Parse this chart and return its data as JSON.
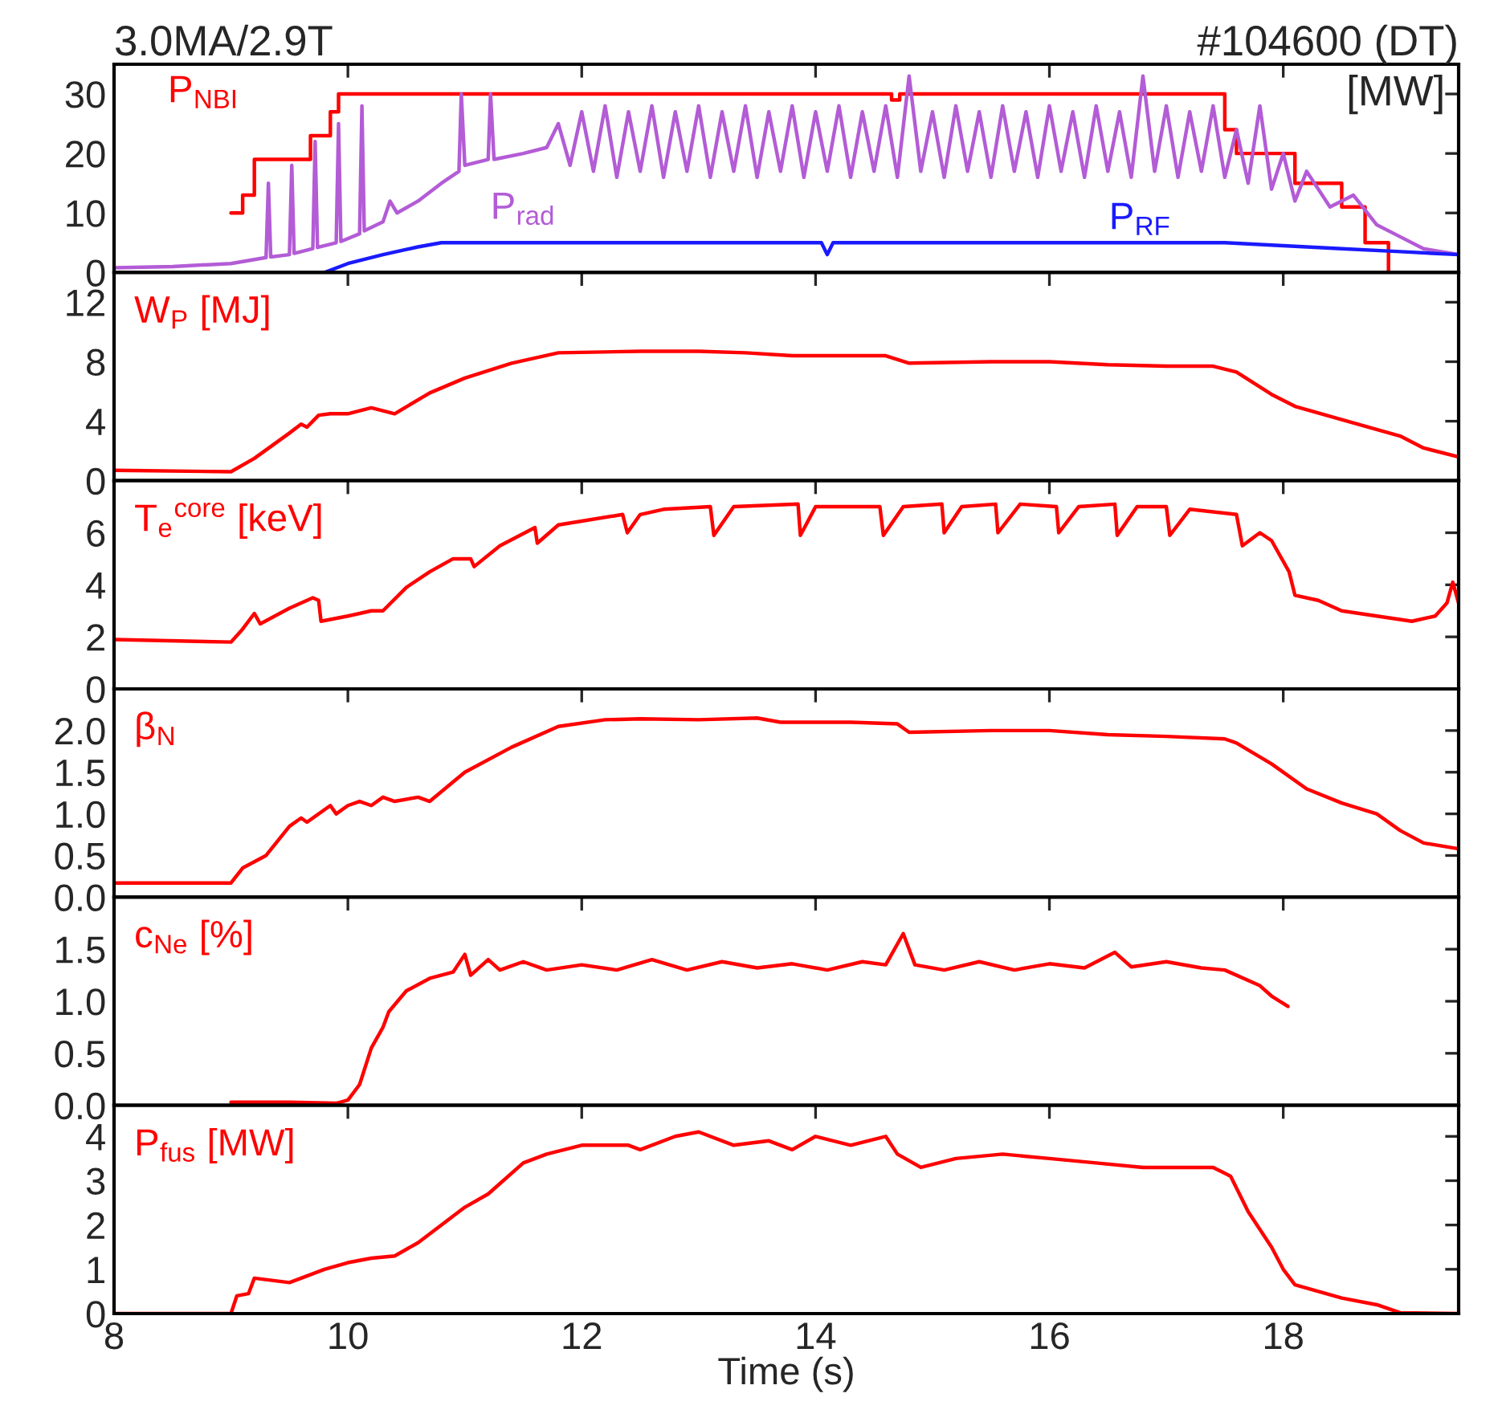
{
  "chart_data": [
    {
      "type": "line",
      "title": "3.0MA/2.9T",
      "subtitle": "#104600 (DT)",
      "ylabel": "[MW]",
      "xlim": [
        8,
        19.5
      ],
      "xticks": [
        8,
        10,
        12,
        14,
        16,
        18
      ],
      "ylim": [
        0,
        35
      ],
      "yticks": [
        0,
        10,
        20,
        30
      ],
      "tick_labels": "y",
      "grid": false,
      "legend": false,
      "series": [
        {
          "name": "P$_{NBI}$",
          "color": "#ff0000",
          "x": [
            9.0,
            9.1,
            9.1,
            9.2,
            9.2,
            9.68,
            9.68,
            9.85,
            9.85,
            9.92,
            9.92,
            14.65,
            14.65,
            14.72,
            14.72,
            17.5,
            17.5,
            17.6,
            17.6,
            18.1,
            18.1,
            18.5,
            18.5,
            18.7,
            18.7,
            18.9,
            18.9
          ],
          "values": [
            10,
            10,
            13,
            13,
            19,
            19,
            23,
            23,
            27,
            27,
            30,
            30,
            29,
            29,
            30,
            30,
            24,
            24,
            20,
            20,
            15,
            15,
            11,
            11,
            5,
            5,
            0
          ]
        },
        {
          "name": "P$_{rad}$",
          "color": "#b35cd6",
          "x": [
            8,
            8.5,
            9.0,
            9.3,
            9.32,
            9.34,
            9.5,
            9.52,
            9.54,
            9.7,
            9.72,
            9.74,
            9.9,
            9.92,
            9.94,
            10.1,
            10.12,
            10.14,
            10.3,
            10.32,
            10.36,
            10.38,
            10.42,
            10.6,
            10.8,
            10.95,
            10.97,
            11.0,
            11.2,
            11.22,
            11.25,
            11.5,
            11.7,
            11.8,
            11.9,
            12.0,
            12.1,
            12.2,
            12.3,
            12.4,
            12.5,
            12.6,
            12.7,
            12.8,
            12.9,
            13.0,
            13.1,
            13.2,
            13.25,
            13.3,
            13.4,
            13.5,
            13.6,
            13.7,
            13.8,
            13.9,
            14.0,
            14.1,
            14.2,
            14.3,
            14.4,
            14.5,
            14.6,
            14.7,
            14.8,
            14.9,
            15.0,
            15.1,
            15.2,
            15.3,
            15.4,
            15.5,
            15.6,
            15.7,
            15.8,
            15.9,
            16.0,
            16.1,
            16.2,
            16.3,
            16.4,
            16.5,
            16.6,
            16.7,
            16.8,
            16.9,
            17.0,
            17.1,
            17.2,
            17.3,
            17.4,
            17.5,
            17.6,
            17.65,
            17.7,
            17.8,
            17.9,
            18.0,
            18.1,
            18.2,
            18.4,
            18.6,
            18.8,
            19.0,
            19.2,
            19.5
          ],
          "values": [
            0.8,
            1.0,
            1.5,
            2.5,
            15,
            2.6,
            3,
            18,
            3.2,
            4,
            22,
            4.2,
            5,
            25,
            5.2,
            6.5,
            28,
            7,
            8.5,
            null,
            12,
            null,
            10,
            12,
            15,
            17,
            30,
            18,
            19,
            30,
            19,
            20,
            21,
            25,
            18,
            27,
            17,
            28,
            16,
            27,
            17,
            28,
            16,
            27,
            17,
            28,
            16,
            27,
            null,
            17,
            28,
            16,
            27,
            17,
            28,
            16,
            27,
            17,
            28,
            16,
            27,
            17,
            28,
            16,
            33,
            17,
            27,
            16,
            28,
            17,
            27,
            16,
            28,
            17,
            27,
            16,
            28,
            17,
            27,
            16,
            28,
            17,
            27,
            16,
            33,
            17,
            28,
            16,
            27,
            17,
            28,
            16,
            24,
            null,
            15,
            28,
            14,
            20,
            12,
            17,
            11,
            13,
            8,
            6,
            4,
            3
          ]
        },
        {
          "name": "P$_{RF}$",
          "color": "#1a1aff",
          "x": [
            9.8,
            10.0,
            10.3,
            10.6,
            10.8,
            11.5,
            12.5,
            13.5,
            14.05,
            14.1,
            14.15,
            15,
            16,
            17,
            17.5,
            18.0,
            18.5,
            19.0,
            19.5
          ],
          "values": [
            0,
            1.5,
            3,
            4.3,
            5,
            5,
            5,
            5,
            5,
            3,
            5,
            5,
            5,
            5,
            5,
            4.5,
            4,
            3.5,
            3
          ]
        }
      ]
    },
    {
      "type": "line",
      "xlim": [
        8,
        19.5
      ],
      "xticks": [
        8,
        10,
        12,
        14,
        16,
        18
      ],
      "ylim": [
        0,
        14
      ],
      "yticks": [
        0,
        4,
        8,
        12
      ],
      "tick_labels": "y",
      "grid": false,
      "legend": false,
      "series": [
        {
          "name": "W$_{P}$ [MJ]",
          "color": "#ff0000",
          "x": [
            8,
            9.0,
            9.2,
            9.5,
            9.6,
            9.65,
            9.75,
            9.85,
            10,
            10.2,
            10.4,
            10.7,
            11,
            11.4,
            11.8,
            12.5,
            13,
            13.4,
            13.8,
            14.2,
            14.6,
            14.8,
            15.5,
            16,
            16.5,
            17,
            17.4,
            17.6,
            17.9,
            18.1,
            18.5,
            19.0,
            19.2,
            19.5
          ],
          "values": [
            0.7,
            0.6,
            1.5,
            3.2,
            3.8,
            3.6,
            4.4,
            4.5,
            4.5,
            4.9,
            4.5,
            5.9,
            6.9,
            7.9,
            8.6,
            8.7,
            8.7,
            8.6,
            8.4,
            8.4,
            8.4,
            7.9,
            8.0,
            8.0,
            7.8,
            7.7,
            7.7,
            7.3,
            5.8,
            5.0,
            4.1,
            3.0,
            2.2,
            1.6
          ]
        }
      ]
    },
    {
      "type": "line",
      "xlim": [
        8,
        19.5
      ],
      "xticks": [
        8,
        10,
        12,
        14,
        16,
        18
      ],
      "ylim": [
        0,
        8
      ],
      "yticks": [
        0,
        2,
        4,
        6
      ],
      "tick_labels": "y",
      "grid": false,
      "legend": false,
      "series": [
        {
          "name": "T$_{e}$$^{core}$ [keV]",
          "color": "#ff0000",
          "x": [
            8,
            9.0,
            9.1,
            9.2,
            9.25,
            9.5,
            9.7,
            9.75,
            9.77,
            10.0,
            10.2,
            10.3,
            10.5,
            10.7,
            10.9,
            11.05,
            11.08,
            11.3,
            11.6,
            11.62,
            11.8,
            12.35,
            12.39,
            12.5,
            12.7,
            13.1,
            13.13,
            13.3,
            13.85,
            13.87,
            14.0,
            14.55,
            14.58,
            14.75,
            15.08,
            15.1,
            15.25,
            15.54,
            15.56,
            15.75,
            16.06,
            16.08,
            16.25,
            16.56,
            16.58,
            16.75,
            17.0,
            17.03,
            17.2,
            17.6,
            17.65,
            17.8,
            17.9,
            18.05,
            18.1,
            18.3,
            18.5,
            18.8,
            19.1,
            19.3,
            19.4,
            19.45,
            19.5
          ],
          "values": [
            1.9,
            1.8,
            2.3,
            2.9,
            2.5,
            3.1,
            3.5,
            3.4,
            2.6,
            2.8,
            3.0,
            3.0,
            3.9,
            4.5,
            5.0,
            5.0,
            4.7,
            5.5,
            6.2,
            5.6,
            6.3,
            6.7,
            6.0,
            6.7,
            6.9,
            7.0,
            5.9,
            7.0,
            7.1,
            5.9,
            7.0,
            7.0,
            5.9,
            7.0,
            7.1,
            6.0,
            7.0,
            7.1,
            6.0,
            7.1,
            7.0,
            6.0,
            7.0,
            7.1,
            5.9,
            7.0,
            7.0,
            5.9,
            6.9,
            6.7,
            5.5,
            6.0,
            5.7,
            4.5,
            3.6,
            3.4,
            3.0,
            2.8,
            2.6,
            2.8,
            3.3,
            4.1,
            3.3
          ]
        }
      ]
    },
    {
      "type": "line",
      "xlim": [
        8,
        19.5
      ],
      "xticks": [
        8,
        10,
        12,
        14,
        16,
        18
      ],
      "ylim": [
        0,
        2.5
      ],
      "yticks": [
        {
          "value": 0,
          "label": "0.0"
        },
        0.5,
        {
          "value": 1,
          "label": "1.0"
        },
        1.5,
        {
          "value": 2,
          "label": "2.0"
        }
      ],
      "tick_labels": "y",
      "grid": false,
      "legend": false,
      "series": [
        {
          "name": "β$_{N}$",
          "color": "#ff0000",
          "x": [
            8,
            9.0,
            9.1,
            9.3,
            9.5,
            9.6,
            9.65,
            9.85,
            9.9,
            10.0,
            10.1,
            10.2,
            10.3,
            10.4,
            10.6,
            10.7,
            11,
            11.4,
            11.8,
            12.2,
            12.5,
            13,
            13.5,
            13.7,
            14.3,
            14.7,
            14.8,
            15.5,
            16,
            16.5,
            17,
            17.5,
            17.6,
            17.9,
            18.2,
            18.5,
            18.8,
            19.0,
            19.2,
            19.5
          ],
          "values": [
            0.17,
            0.17,
            0.35,
            0.5,
            0.85,
            0.95,
            0.9,
            1.1,
            1.0,
            1.1,
            1.15,
            1.1,
            1.2,
            1.15,
            1.2,
            1.15,
            1.5,
            1.8,
            2.05,
            2.13,
            2.14,
            2.13,
            2.15,
            2.1,
            2.1,
            2.08,
            1.98,
            2.0,
            2.0,
            1.95,
            1.93,
            1.9,
            1.85,
            1.6,
            1.3,
            1.13,
            1.0,
            0.8,
            0.65,
            0.58
          ]
        }
      ]
    },
    {
      "type": "line",
      "xlim": [
        8,
        19.5
      ],
      "xticks": [
        8,
        10,
        12,
        14,
        16,
        18
      ],
      "ylim": [
        0,
        2.0
      ],
      "yticks": [
        {
          "value": 0,
          "label": "0.0"
        },
        0.5,
        {
          "value": 1,
          "label": "1.0"
        },
        1.5
      ],
      "tick_labels": "y",
      "grid": false,
      "legend": false,
      "series": [
        {
          "name": "c$_{Ne}$ [%]",
          "color": "#ff0000",
          "x": [
            9.0,
            9.5,
            9.9,
            10.0,
            10.1,
            10.2,
            10.3,
            10.35,
            10.5,
            10.7,
            10.9,
            11.0,
            11.05,
            11.2,
            11.3,
            11.5,
            11.7,
            12.0,
            12.3,
            12.6,
            12.9,
            13.2,
            13.5,
            13.8,
            14.1,
            14.4,
            14.6,
            14.75,
            14.85,
            15.1,
            15.4,
            15.7,
            16.0,
            16.3,
            16.56,
            16.7,
            17.0,
            17.3,
            17.5,
            17.8,
            17.9,
            18.04
          ],
          "values": [
            0.03,
            0.03,
            0.02,
            0.05,
            0.2,
            0.55,
            0.75,
            0.9,
            1.1,
            1.22,
            1.28,
            1.45,
            1.25,
            1.4,
            1.3,
            1.38,
            1.3,
            1.35,
            1.3,
            1.4,
            1.3,
            1.38,
            1.32,
            1.36,
            1.3,
            1.38,
            1.35,
            1.65,
            1.35,
            1.3,
            1.38,
            1.3,
            1.36,
            1.32,
            1.47,
            1.33,
            1.38,
            1.32,
            1.3,
            1.15,
            1.05,
            0.95
          ]
        }
      ]
    },
    {
      "type": "line",
      "xlabel": "Time (s)",
      "xlim": [
        8,
        19.5
      ],
      "xticks": [
        8,
        10,
        12,
        14,
        16,
        18
      ],
      "ylim": [
        0,
        4.7
      ],
      "yticks": [
        0,
        1,
        2,
        3,
        4
      ],
      "grid": false,
      "legend": false,
      "series": [
        {
          "name": "P$_{fus}$ [MW]",
          "color": "#ff0000",
          "x": [
            8,
            9.0,
            9.05,
            9.15,
            9.2,
            9.5,
            9.8,
            10,
            10.2,
            10.4,
            10.6,
            11,
            11.2,
            11.5,
            11.7,
            12,
            12.4,
            12.5,
            12.8,
            13.0,
            13.3,
            13.6,
            13.8,
            14.0,
            14.3,
            14.6,
            14.7,
            14.9,
            15.2,
            15.6,
            16.0,
            16.4,
            16.8,
            17.0,
            17.4,
            17.55,
            17.7,
            17.9,
            18.0,
            18.1,
            18.5,
            18.8,
            19.0,
            19.5
          ],
          "values": [
            0,
            0,
            0.4,
            0.45,
            0.8,
            0.7,
            1.0,
            1.15,
            1.25,
            1.3,
            1.6,
            2.4,
            2.7,
            3.4,
            3.6,
            3.8,
            3.8,
            3.7,
            4.0,
            4.1,
            3.8,
            3.9,
            3.7,
            4.0,
            3.8,
            4.0,
            3.6,
            3.3,
            3.5,
            3.6,
            3.5,
            3.4,
            3.3,
            3.3,
            3.3,
            3.1,
            2.3,
            1.5,
            1.0,
            0.65,
            0.35,
            0.2,
            0.02,
            0
          ]
        }
      ]
    }
  ]
}
